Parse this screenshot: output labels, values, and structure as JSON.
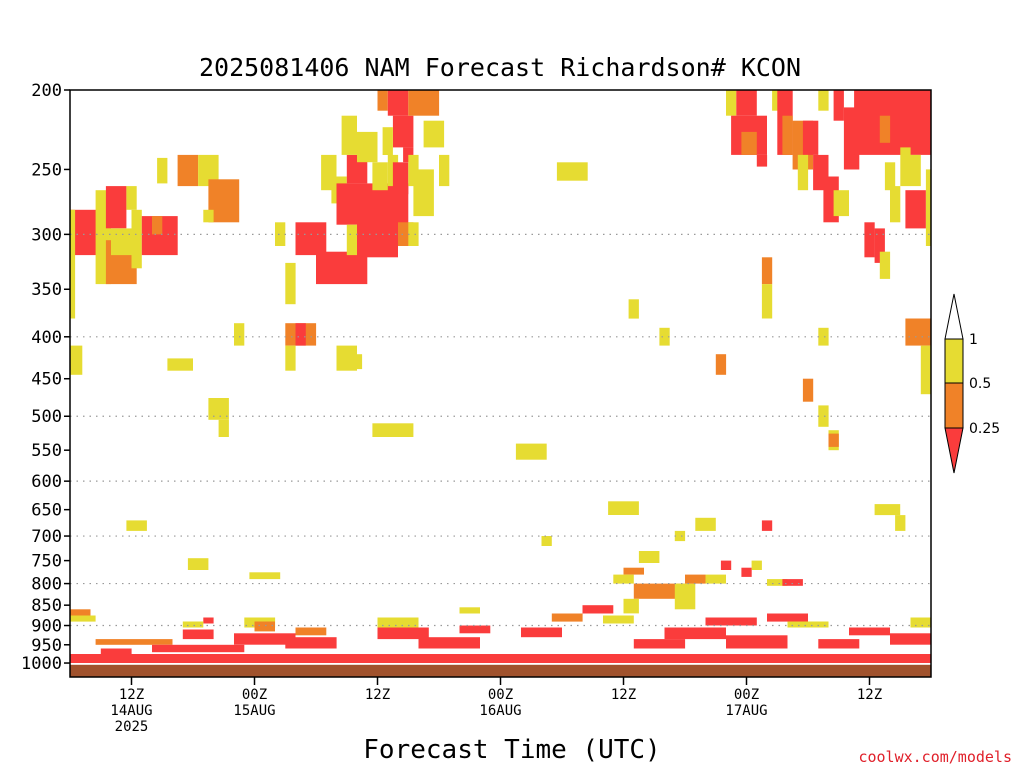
{
  "chart_data": {
    "type": "heatmap",
    "title": "2025081406 NAM Forecast Richardson# KCON",
    "xlabel": "Forecast Time (UTC)",
    "ylabel": "",
    "credit": "coolwx.com/models",
    "y_axis": {
      "scale": "log-pressure",
      "ylim_hPa": [
        1040,
        200
      ],
      "ticks": [
        "200",
        "250",
        "300",
        "350",
        "400",
        "450",
        "500",
        "550",
        "600",
        "650",
        "700",
        "750",
        "800",
        "850",
        "900",
        "950",
        "1000"
      ],
      "dotted_gridlines_hPa": [
        300,
        400,
        500,
        600,
        700,
        800,
        900
      ]
    },
    "x_axis": {
      "unit": "forecast hour",
      "xlim_hours": [
        0,
        84
      ],
      "ticks": [
        {
          "hour": 6,
          "lines": [
            "12Z",
            "14AUG",
            "2025"
          ]
        },
        {
          "hour": 18,
          "lines": [
            "00Z",
            "15AUG"
          ]
        },
        {
          "hour": 30,
          "lines": [
            "12Z"
          ]
        },
        {
          "hour": 42,
          "lines": [
            "00Z",
            "16AUG"
          ]
        },
        {
          "hour": 54,
          "lines": [
            "12Z"
          ]
        },
        {
          "hour": 66,
          "lines": [
            "00Z",
            "17AUG"
          ]
        },
        {
          "hour": 78,
          "lines": [
            "12Z"
          ]
        }
      ]
    },
    "legend": {
      "placement": "right",
      "levels": [
        "1",
        "0.5",
        "0.25"
      ],
      "bins": [
        {
          "range": "> 1",
          "color": "#ffffff"
        },
        {
          "range": "0.5 - 1",
          "color": "#e6dc32"
        },
        {
          "range": "0.25 - 0.5",
          "color": "#f08228"
        },
        {
          "range": "< 0.25",
          "color": "#fa3c3c"
        }
      ]
    },
    "colors": {
      "yellow": "#e6dc32",
      "orange": "#f08228",
      "red": "#fa3c3c",
      "ground": "#a0522d"
    },
    "ground_level_hPa": 1005,
    "cells": [
      {
        "h0": 0,
        "h1": 3,
        "p0": 280,
        "p1": 318,
        "c": "red"
      },
      {
        "h0": 0,
        "h1": 0.5,
        "p0": 280,
        "p1": 380,
        "c": "yellow"
      },
      {
        "h0": 0,
        "h1": 1.2,
        "p0": 410,
        "p1": 445,
        "c": "yellow"
      },
      {
        "h0": 2.5,
        "h1": 4,
        "p0": 265,
        "p1": 345,
        "c": "yellow"
      },
      {
        "h0": 3.5,
        "h1": 5.5,
        "p0": 262,
        "p1": 295,
        "c": "red"
      },
      {
        "h0": 5.5,
        "h1": 6.5,
        "p0": 262,
        "p1": 280,
        "c": "yellow"
      },
      {
        "h0": 3.5,
        "h1": 6.5,
        "p0": 305,
        "p1": 345,
        "c": "orange"
      },
      {
        "h0": 4,
        "h1": 6,
        "p0": 295,
        "p1": 318,
        "c": "yellow"
      },
      {
        "h0": 6,
        "h1": 7,
        "p0": 280,
        "p1": 330,
        "c": "yellow"
      },
      {
        "h0": 7,
        "h1": 10.5,
        "p0": 285,
        "p1": 318,
        "c": "red"
      },
      {
        "h0": 8,
        "h1": 9,
        "p0": 285,
        "p1": 300,
        "c": "orange"
      },
      {
        "h0": 8.5,
        "h1": 9.5,
        "p0": 242,
        "p1": 260,
        "c": "yellow"
      },
      {
        "h0": 10.5,
        "h1": 12.5,
        "p0": 240,
        "p1": 262,
        "c": "orange"
      },
      {
        "h0": 12.5,
        "h1": 14.5,
        "p0": 240,
        "p1": 262,
        "c": "yellow"
      },
      {
        "h0": 13.5,
        "h1": 16.5,
        "p0": 257,
        "p1": 290,
        "c": "orange"
      },
      {
        "h0": 13,
        "h1": 14,
        "p0": 280,
        "p1": 290,
        "c": "yellow"
      },
      {
        "h0": 9.5,
        "h1": 12,
        "p0": 425,
        "p1": 440,
        "c": "yellow"
      },
      {
        "h0": 13.5,
        "h1": 15.5,
        "p0": 475,
        "p1": 505,
        "c": "yellow"
      },
      {
        "h0": 14.5,
        "h1": 15.5,
        "p0": 505,
        "p1": 530,
        "c": "yellow"
      },
      {
        "h0": 16,
        "h1": 17,
        "p0": 385,
        "p1": 410,
        "c": "yellow"
      },
      {
        "h0": 11.5,
        "h1": 13.5,
        "p0": 745,
        "p1": 770,
        "c": "yellow"
      },
      {
        "h0": 5.5,
        "h1": 7.5,
        "p0": 670,
        "p1": 690,
        "c": "yellow"
      },
      {
        "h0": 17.5,
        "h1": 20.5,
        "p0": 775,
        "p1": 790,
        "c": "yellow"
      },
      {
        "h0": 20,
        "h1": 21,
        "p0": 290,
        "p1": 310,
        "c": "yellow"
      },
      {
        "h0": 21,
        "h1": 22,
        "p0": 325,
        "p1": 365,
        "c": "yellow"
      },
      {
        "h0": 21,
        "h1": 24,
        "p0": 385,
        "p1": 410,
        "c": "orange"
      },
      {
        "h0": 22,
        "h1": 23,
        "p0": 385,
        "p1": 410,
        "c": "red"
      },
      {
        "h0": 21,
        "h1": 22,
        "p0": 410,
        "p1": 440,
        "c": "yellow"
      },
      {
        "h0": 22,
        "h1": 25,
        "p0": 290,
        "p1": 318,
        "c": "red"
      },
      {
        "h0": 24,
        "h1": 29,
        "p0": 315,
        "p1": 345,
        "c": "red"
      },
      {
        "h0": 26,
        "h1": 28,
        "p0": 410,
        "p1": 440,
        "c": "yellow"
      },
      {
        "h0": 24.5,
        "h1": 26,
        "p0": 240,
        "p1": 265,
        "c": "yellow"
      },
      {
        "h0": 25.5,
        "h1": 27,
        "p0": 255,
        "p1": 275,
        "c": "yellow"
      },
      {
        "h0": 26,
        "h1": 33,
        "p0": 260,
        "p1": 292,
        "c": "red"
      },
      {
        "h0": 27,
        "h1": 28,
        "p0": 292,
        "p1": 318,
        "c": "yellow"
      },
      {
        "h0": 28,
        "h1": 32,
        "p0": 290,
        "p1": 320,
        "c": "red"
      },
      {
        "h0": 27,
        "h1": 29,
        "p0": 240,
        "p1": 260,
        "c": "red"
      },
      {
        "h0": 26.5,
        "h1": 28,
        "p0": 215,
        "p1": 240,
        "c": "yellow"
      },
      {
        "h0": 28,
        "h1": 30,
        "p0": 225,
        "p1": 245,
        "c": "yellow"
      },
      {
        "h0": 29.5,
        "h1": 31,
        "p0": 245,
        "p1": 265,
        "c": "yellow"
      },
      {
        "h0": 30,
        "h1": 31,
        "p0": 200,
        "p1": 212,
        "c": "orange"
      },
      {
        "h0": 31,
        "h1": 33,
        "p0": 200,
        "p1": 215,
        "c": "red"
      },
      {
        "h0": 31.5,
        "h1": 33.5,
        "p0": 215,
        "p1": 235,
        "c": "red"
      },
      {
        "h0": 30.5,
        "h1": 31.5,
        "p0": 222,
        "p1": 240,
        "c": "yellow"
      },
      {
        "h0": 32.5,
        "h1": 33.5,
        "p0": 235,
        "p1": 245,
        "c": "red"
      },
      {
        "h0": 31,
        "h1": 32,
        "p0": 240,
        "p1": 262,
        "c": "yellow"
      },
      {
        "h0": 31.5,
        "h1": 33,
        "p0": 245,
        "p1": 268,
        "c": "red"
      },
      {
        "h0": 33,
        "h1": 36,
        "p0": 200,
        "p1": 215,
        "c": "orange"
      },
      {
        "h0": 34.5,
        "h1": 36.5,
        "p0": 218,
        "p1": 235,
        "c": "yellow"
      },
      {
        "h0": 33,
        "h1": 34,
        "p0": 240,
        "p1": 262,
        "c": "yellow"
      },
      {
        "h0": 33.5,
        "h1": 35.5,
        "p0": 250,
        "p1": 285,
        "c": "yellow"
      },
      {
        "h0": 36,
        "h1": 37,
        "p0": 240,
        "p1": 262,
        "c": "yellow"
      },
      {
        "h0": 32,
        "h1": 33.5,
        "p0": 290,
        "p1": 310,
        "c": "orange"
      },
      {
        "h0": 33,
        "h1": 34,
        "p0": 290,
        "p1": 310,
        "c": "yellow"
      },
      {
        "h0": 29.5,
        "h1": 33.5,
        "p0": 510,
        "p1": 530,
        "c": "yellow"
      },
      {
        "h0": 26.5,
        "h1": 28.5,
        "p0": 420,
        "p1": 438,
        "c": "yellow"
      },
      {
        "h0": 43.5,
        "h1": 46.5,
        "p0": 540,
        "p1": 565,
        "c": "yellow"
      },
      {
        "h0": 47.5,
        "h1": 50.5,
        "p0": 245,
        "p1": 258,
        "c": "yellow"
      },
      {
        "h0": 54.5,
        "h1": 55.5,
        "p0": 360,
        "p1": 380,
        "c": "yellow"
      },
      {
        "h0": 57.5,
        "h1": 58.5,
        "p0": 390,
        "p1": 410,
        "c": "yellow"
      },
      {
        "h0": 52.5,
        "h1": 55.5,
        "p0": 635,
        "p1": 660,
        "c": "yellow"
      },
      {
        "h0": 61,
        "h1": 63,
        "p0": 665,
        "p1": 690,
        "c": "yellow"
      },
      {
        "h0": 59,
        "h1": 60,
        "p0": 690,
        "p1": 710,
        "c": "yellow"
      },
      {
        "h0": 46,
        "h1": 47,
        "p0": 700,
        "p1": 720,
        "c": "yellow"
      },
      {
        "h0": 55.5,
        "h1": 57.5,
        "p0": 730,
        "p1": 755,
        "c": "yellow"
      },
      {
        "h0": 54,
        "h1": 56,
        "p0": 765,
        "p1": 780,
        "c": "orange"
      },
      {
        "h0": 53,
        "h1": 55,
        "p0": 780,
        "p1": 800,
        "c": "yellow"
      },
      {
        "h0": 55,
        "h1": 60,
        "p0": 800,
        "p1": 835,
        "c": "orange"
      },
      {
        "h0": 54,
        "h1": 55.5,
        "p0": 835,
        "p1": 870,
        "c": "yellow"
      },
      {
        "h0": 59,
        "h1": 61,
        "p0": 800,
        "p1": 860,
        "c": "yellow"
      },
      {
        "h0": 60,
        "h1": 62,
        "p0": 780,
        "p1": 800,
        "c": "orange"
      },
      {
        "h0": 62,
        "h1": 64,
        "p0": 780,
        "p1": 800,
        "c": "yellow"
      },
      {
        "h0": 63.5,
        "h1": 64.5,
        "p0": 750,
        "p1": 770,
        "c": "red"
      },
      {
        "h0": 65.5,
        "h1": 66.5,
        "p0": 765,
        "p1": 785,
        "c": "red"
      },
      {
        "h0": 66.5,
        "h1": 67.5,
        "p0": 750,
        "p1": 770,
        "c": "yellow"
      },
      {
        "h0": 67.5,
        "h1": 68.5,
        "p0": 670,
        "p1": 690,
        "c": "red"
      },
      {
        "h0": 68,
        "h1": 70,
        "p0": 790,
        "p1": 805,
        "c": "yellow"
      },
      {
        "h0": 69.5,
        "h1": 71.5,
        "p0": 790,
        "p1": 805,
        "c": "red"
      },
      {
        "h0": 63,
        "h1": 64,
        "p0": 420,
        "p1": 445,
        "c": "orange"
      },
      {
        "h0": 67.5,
        "h1": 68.5,
        "p0": 320,
        "p1": 345,
        "c": "orange"
      },
      {
        "h0": 67.5,
        "h1": 68.5,
        "p0": 345,
        "p1": 380,
        "c": "yellow"
      },
      {
        "h0": 71.5,
        "h1": 72.5,
        "p0": 450,
        "p1": 480,
        "c": "orange"
      },
      {
        "h0": 73,
        "h1": 74,
        "p0": 390,
        "p1": 410,
        "c": "yellow"
      },
      {
        "h0": 73,
        "h1": 74,
        "p0": 485,
        "p1": 515,
        "c": "yellow"
      },
      {
        "h0": 74,
        "h1": 75,
        "p0": 520,
        "p1": 550,
        "c": "yellow"
      },
      {
        "h0": 74,
        "h1": 75,
        "p0": 525,
        "p1": 545,
        "c": "orange"
      },
      {
        "h0": 78.5,
        "h1": 81,
        "p0": 640,
        "p1": 660,
        "c": "yellow"
      },
      {
        "h0": 80.5,
        "h1": 81.5,
        "p0": 660,
        "p1": 690,
        "c": "yellow"
      },
      {
        "h0": 81.5,
        "h1": 84,
        "p0": 380,
        "p1": 410,
        "c": "orange"
      },
      {
        "h0": 83,
        "h1": 84,
        "p0": 410,
        "p1": 470,
        "c": "yellow"
      },
      {
        "h0": 64,
        "h1": 65,
        "p0": 200,
        "p1": 215,
        "c": "yellow"
      },
      {
        "h0": 65,
        "h1": 67,
        "p0": 200,
        "p1": 215,
        "c": "red"
      },
      {
        "h0": 64.5,
        "h1": 68,
        "p0": 215,
        "p1": 240,
        "c": "red"
      },
      {
        "h0": 65.5,
        "h1": 67,
        "p0": 225,
        "p1": 240,
        "c": "orange"
      },
      {
        "h0": 67,
        "h1": 68,
        "p0": 240,
        "p1": 248,
        "c": "red"
      },
      {
        "h0": 68.5,
        "h1": 69.5,
        "p0": 200,
        "p1": 212,
        "c": "yellow"
      },
      {
        "h0": 69,
        "h1": 70.5,
        "p0": 200,
        "p1": 240,
        "c": "red"
      },
      {
        "h0": 69.5,
        "h1": 70.5,
        "p0": 215,
        "p1": 240,
        "c": "orange"
      },
      {
        "h0": 70.5,
        "h1": 72.5,
        "p0": 218,
        "p1": 250,
        "c": "orange"
      },
      {
        "h0": 71.5,
        "h1": 73,
        "p0": 218,
        "p1": 240,
        "c": "red"
      },
      {
        "h0": 71,
        "h1": 72,
        "p0": 240,
        "p1": 265,
        "c": "yellow"
      },
      {
        "h0": 72.5,
        "h1": 74,
        "p0": 240,
        "p1": 265,
        "c": "red"
      },
      {
        "h0": 73,
        "h1": 74,
        "p0": 200,
        "p1": 212,
        "c": "yellow"
      },
      {
        "h0": 74.5,
        "h1": 75.5,
        "p0": 200,
        "p1": 218,
        "c": "red"
      },
      {
        "h0": 73.5,
        "h1": 75,
        "p0": 255,
        "p1": 290,
        "c": "red"
      },
      {
        "h0": 74.5,
        "h1": 76,
        "p0": 265,
        "p1": 285,
        "c": "yellow"
      },
      {
        "h0": 75.5,
        "h1": 77,
        "p0": 210,
        "p1": 250,
        "c": "red"
      },
      {
        "h0": 76.5,
        "h1": 84,
        "p0": 200,
        "p1": 240,
        "c": "red"
      },
      {
        "h0": 78.5,
        "h1": 81,
        "p0": 200,
        "p1": 212,
        "c": "red"
      },
      {
        "h0": 79,
        "h1": 80,
        "p0": 215,
        "p1": 232,
        "c": "orange"
      },
      {
        "h0": 81,
        "h1": 82,
        "p0": 235,
        "p1": 262,
        "c": "yellow"
      },
      {
        "h0": 79.5,
        "h1": 80.5,
        "p0": 245,
        "p1": 265,
        "c": "yellow"
      },
      {
        "h0": 82,
        "h1": 83,
        "p0": 240,
        "p1": 262,
        "c": "yellow"
      },
      {
        "h0": 80,
        "h1": 81,
        "p0": 262,
        "p1": 290,
        "c": "yellow"
      },
      {
        "h0": 81.5,
        "h1": 83.5,
        "p0": 265,
        "p1": 295,
        "c": "red"
      },
      {
        "h0": 77.5,
        "h1": 78.5,
        "p0": 290,
        "p1": 320,
        "c": "red"
      },
      {
        "h0": 78.5,
        "h1": 79.5,
        "p0": 295,
        "p1": 325,
        "c": "red"
      },
      {
        "h0": 79,
        "h1": 80,
        "p0": 315,
        "p1": 340,
        "c": "yellow"
      },
      {
        "h0": 83.5,
        "h1": 84,
        "p0": 250,
        "p1": 310,
        "c": "yellow"
      },
      {
        "h0": 0,
        "h1": 2,
        "p0": 860,
        "p1": 875,
        "c": "orange"
      },
      {
        "h0": 0,
        "h1": 2.5,
        "p0": 875,
        "p1": 890,
        "c": "yellow"
      },
      {
        "h0": 2.5,
        "h1": 10,
        "p0": 935,
        "p1": 950,
        "c": "orange"
      },
      {
        "h0": 0,
        "h1": 84,
        "p0": 975,
        "p1": 1000,
        "c": "red"
      },
      {
        "h0": 3,
        "h1": 6,
        "p0": 960,
        "p1": 975,
        "c": "red"
      },
      {
        "h0": 8,
        "h1": 17,
        "p0": 950,
        "p1": 970,
        "c": "red"
      },
      {
        "h0": 11,
        "h1": 14,
        "p0": 910,
        "p1": 935,
        "c": "red"
      },
      {
        "h0": 13,
        "h1": 14,
        "p0": 880,
        "p1": 895,
        "c": "red"
      },
      {
        "h0": 11,
        "h1": 13,
        "p0": 890,
        "p1": 905,
        "c": "yellow"
      },
      {
        "h0": 16,
        "h1": 22,
        "p0": 920,
        "p1": 950,
        "c": "red"
      },
      {
        "h0": 17,
        "h1": 20,
        "p0": 880,
        "p1": 905,
        "c": "yellow"
      },
      {
        "h0": 18,
        "h1": 20,
        "p0": 890,
        "p1": 915,
        "c": "orange"
      },
      {
        "h0": 21,
        "h1": 26,
        "p0": 930,
        "p1": 960,
        "c": "red"
      },
      {
        "h0": 22,
        "h1": 25,
        "p0": 905,
        "p1": 925,
        "c": "orange"
      },
      {
        "h0": 30,
        "h1": 34,
        "p0": 880,
        "p1": 905,
        "c": "yellow"
      },
      {
        "h0": 30,
        "h1": 35,
        "p0": 905,
        "p1": 935,
        "c": "red"
      },
      {
        "h0": 34,
        "h1": 40,
        "p0": 930,
        "p1": 960,
        "c": "red"
      },
      {
        "h0": 38,
        "h1": 41,
        "p0": 900,
        "p1": 920,
        "c": "red"
      },
      {
        "h0": 38,
        "h1": 40,
        "p0": 855,
        "p1": 870,
        "c": "yellow"
      },
      {
        "h0": 44,
        "h1": 48,
        "p0": 905,
        "p1": 930,
        "c": "red"
      },
      {
        "h0": 47,
        "h1": 50,
        "p0": 870,
        "p1": 890,
        "c": "orange"
      },
      {
        "h0": 50,
        "h1": 53,
        "p0": 850,
        "p1": 870,
        "c": "red"
      },
      {
        "h0": 52,
        "h1": 55,
        "p0": 875,
        "p1": 895,
        "c": "yellow"
      },
      {
        "h0": 55,
        "h1": 60,
        "p0": 935,
        "p1": 960,
        "c": "red"
      },
      {
        "h0": 58,
        "h1": 64,
        "p0": 905,
        "p1": 935,
        "c": "red"
      },
      {
        "h0": 62,
        "h1": 67,
        "p0": 880,
        "p1": 900,
        "c": "red"
      },
      {
        "h0": 64,
        "h1": 70,
        "p0": 925,
        "p1": 960,
        "c": "red"
      },
      {
        "h0": 68,
        "h1": 72,
        "p0": 870,
        "p1": 890,
        "c": "red"
      },
      {
        "h0": 70,
        "h1": 74,
        "p0": 890,
        "p1": 905,
        "c": "yellow"
      },
      {
        "h0": 73,
        "h1": 77,
        "p0": 935,
        "p1": 960,
        "c": "red"
      },
      {
        "h0": 76,
        "h1": 80,
        "p0": 905,
        "p1": 925,
        "c": "red"
      },
      {
        "h0": 80,
        "h1": 84,
        "p0": 920,
        "p1": 950,
        "c": "red"
      },
      {
        "h0": 82,
        "h1": 84,
        "p0": 880,
        "p1": 905,
        "c": "yellow"
      }
    ]
  }
}
